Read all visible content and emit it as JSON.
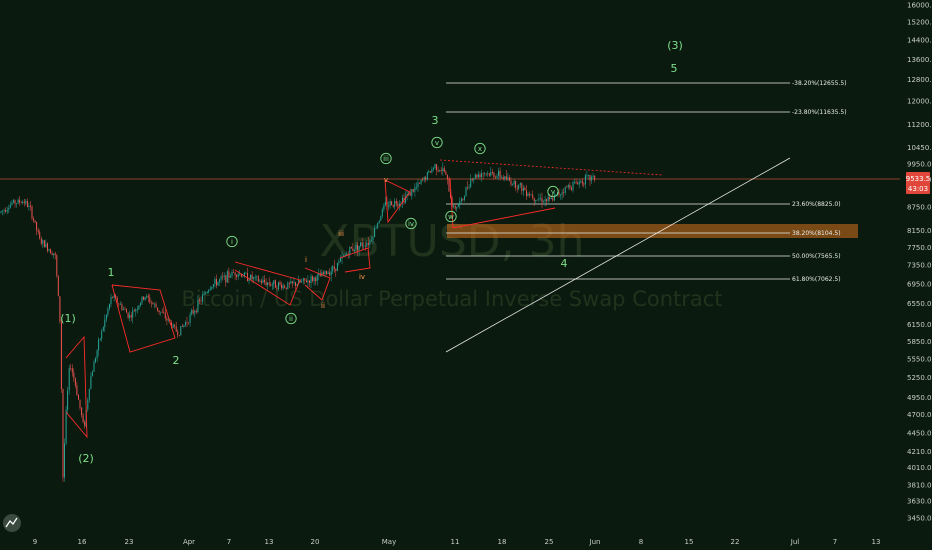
{
  "chart_data": {
    "type": "candlestick",
    "watermark": {
      "symbol": "XBTUSD, 3h",
      "description": "Bitcoin / US Dollar Perpetual Inverse Swap Contract"
    },
    "price_axis": {
      "ticks": [
        16000,
        15200,
        14400,
        13600,
        12800,
        12000,
        11200,
        10450,
        9950,
        9500,
        8750,
        8150,
        7750,
        7350,
        6950,
        6550,
        6150,
        5850,
        5550,
        5250,
        4950,
        4700,
        4450,
        4210,
        4010,
        3810,
        3630,
        3450
      ],
      "current_price": "9533.5",
      "countdown": "43:03"
    },
    "time_axis": {
      "ticks": [
        "9",
        "16",
        "23",
        "Apr",
        "7",
        "13",
        "20",
        "May",
        "11",
        "18",
        "25",
        "Jun",
        "8",
        "15",
        "22",
        "Jul",
        "7",
        "13"
      ]
    },
    "fib_levels": [
      {
        "label": "-38.20%(12655.5)",
        "price": 12655.5
      },
      {
        "label": "-23.80%(11635.5)",
        "price": 11635.5
      },
      {
        "label": "23.60%(8825.0)",
        "price": 8825.0
      },
      {
        "label": "38.20%(8104.5)",
        "price": 8104.5
      },
      {
        "label": "50.00%(7565.5)",
        "price": 7565.5
      },
      {
        "label": "61.80%(7062.5)",
        "price": 7062.5
      }
    ],
    "wave_labels": [
      {
        "text": "(1)",
        "color": "#7ee08a"
      },
      {
        "text": "(2)",
        "color": "#7ee08a"
      },
      {
        "text": "1",
        "color": "#7ee08a"
      },
      {
        "text": "2",
        "color": "#7ee08a"
      },
      {
        "text": "i",
        "color": "#7ee08a",
        "circled": true
      },
      {
        "text": "ii",
        "color": "#7ee08a",
        "circled": true
      },
      {
        "text": "iii",
        "color": "#7ee08a",
        "circled": true
      },
      {
        "text": "iv",
        "color": "#7ee08a",
        "circled": true
      },
      {
        "text": "v",
        "color": "#7ee08a",
        "circled": true
      },
      {
        "text": "3",
        "color": "#7ee08a"
      },
      {
        "text": "i",
        "color": "#ff9a50"
      },
      {
        "text": "ii",
        "color": "#ff9a50"
      },
      {
        "text": "iii",
        "color": "#ff9a50"
      },
      {
        "text": "iv",
        "color": "#ff9a50"
      },
      {
        "text": "v",
        "color": "#ff9a50"
      },
      {
        "text": "w",
        "color": "#7ee08a",
        "circled": true
      },
      {
        "text": "x",
        "color": "#7ee08a",
        "circled": true
      },
      {
        "text": "y",
        "color": "#7ee08a",
        "circled": true
      },
      {
        "text": "4",
        "color": "#7ee08a"
      },
      {
        "text": "5",
        "color": "#7ee08a"
      },
      {
        "text": "(3)",
        "color": "#7ee08a"
      }
    ],
    "colors": {
      "background": "#0b1a0f",
      "up": "#26a69a",
      "down": "#ef5350",
      "trendline": "#ffffff",
      "pattern": "#ff2b2b",
      "price_line": "#e05a3a",
      "zone": "#c46a1a",
      "wave": "#7ee08a"
    }
  }
}
